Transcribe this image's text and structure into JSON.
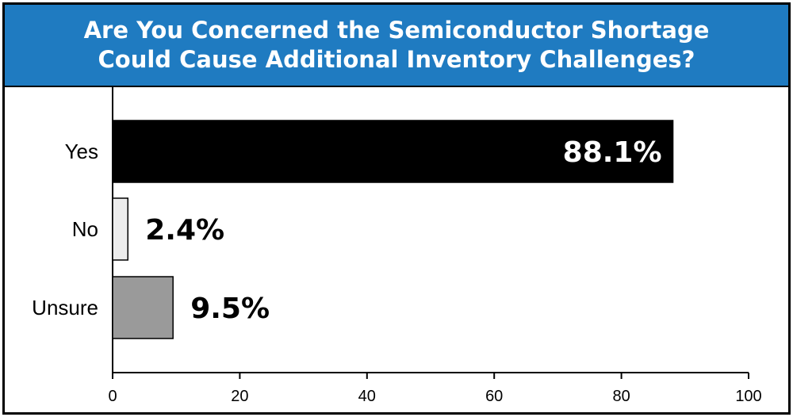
{
  "chart_data": {
    "type": "bar",
    "orientation": "horizontal",
    "title_lines": [
      "Are You Concerned the Semiconductor Shortage",
      "Could Cause Additional Inventory Challenges?"
    ],
    "categories": [
      "Yes",
      "No",
      "Unsure"
    ],
    "values": [
      88.1,
      2.4,
      9.5
    ],
    "data_labels": [
      "88.1%",
      "2.4%",
      "9.5%"
    ],
    "bar_colors": [
      "#000000",
      "#ececec",
      "#9a9a9a"
    ],
    "xlim": [
      0,
      100
    ],
    "xticks": [
      "0",
      "20",
      "40",
      "60",
      "80",
      "100"
    ],
    "xlabel": "",
    "ylabel": "",
    "grid": false,
    "legend": "none",
    "header_color": "#1f7bc1"
  }
}
